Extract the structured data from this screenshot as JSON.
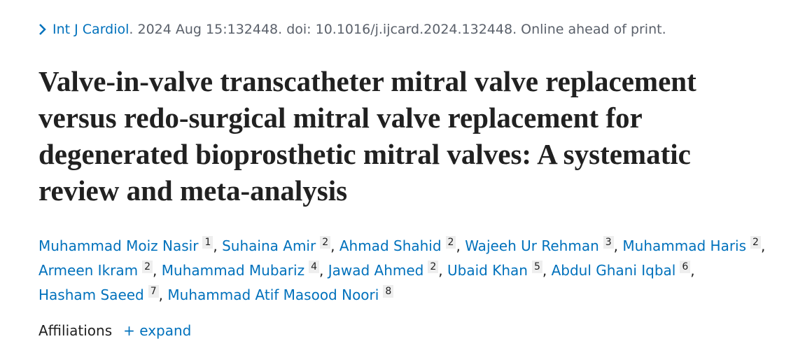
{
  "citation": {
    "journal": "Int J Cardiol",
    "details": ". 2024 Aug 15:132448. doi: 10.1016/j.ijcard.2024.132448. Online ahead of print."
  },
  "title": "Valve-in-valve transcatheter mitral valve replacement versus redo-surgical mitral valve replacement for degenerated bioprosthetic mitral valves: A systematic review and meta-analysis",
  "authors": {
    "separator": ",",
    "list": [
      {
        "name": "Muhammad Moiz Nasir",
        "affiliation": "1"
      },
      {
        "name": "Suhaina Amir",
        "affiliation": "2"
      },
      {
        "name": "Ahmad Shahid",
        "affiliation": "2"
      },
      {
        "name": "Wajeeh Ur Rehman",
        "affiliation": "3"
      },
      {
        "name": "Muhammad Haris",
        "affiliation": "2"
      },
      {
        "name": "Armeen Ikram",
        "affiliation": "2"
      },
      {
        "name": "Muhammad Mubariz",
        "affiliation": "4"
      },
      {
        "name": "Jawad Ahmed",
        "affiliation": "2"
      },
      {
        "name": "Ubaid Khan",
        "affiliation": "5"
      },
      {
        "name": "Abdul Ghani Iqbal",
        "affiliation": "6"
      },
      {
        "name": "Hasham Saeed",
        "affiliation": "7"
      },
      {
        "name": "Muhammad Atif Masood Noori",
        "affiliation": "8"
      }
    ]
  },
  "affiliations": {
    "label": "Affiliations",
    "toggle": "expand"
  }
}
